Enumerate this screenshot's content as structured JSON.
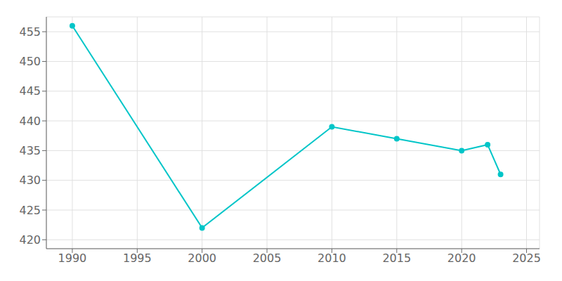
{
  "chart_data": {
    "type": "line",
    "x": [
      1990,
      2000,
      2010,
      2015,
      2020,
      2022,
      2023
    ],
    "values": [
      456,
      422,
      439,
      437,
      435,
      436,
      431
    ],
    "color": "#00C5C8",
    "marker": "circle",
    "xlim": [
      1988,
      2026
    ],
    "ylim": [
      418.5,
      457.5
    ],
    "xticks": [
      1990,
      1995,
      2000,
      2005,
      2010,
      2015,
      2020,
      2025
    ],
    "yticks": [
      420,
      425,
      430,
      435,
      440,
      445,
      450,
      455
    ],
    "grid": true
  }
}
